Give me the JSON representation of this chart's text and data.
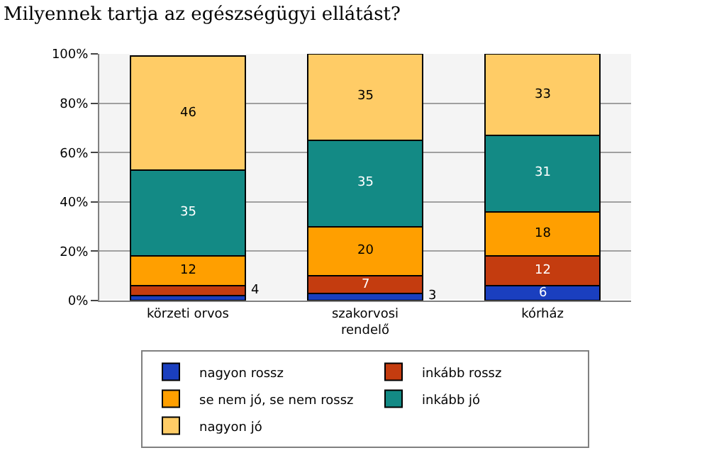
{
  "chart_data": {
    "type": "bar",
    "title": "Milyennek tartja az egészségügyi ellátást?",
    "categories": [
      "körzeti orvos",
      "szakorvosi\nrendelő",
      "kórház"
    ],
    "stacked": true,
    "ylim": [
      0,
      100
    ],
    "yticks": [
      {
        "value": 0,
        "label": "0%"
      },
      {
        "value": 20,
        "label": "20%"
      },
      {
        "value": 40,
        "label": "40%"
      },
      {
        "value": 60,
        "label": "60%"
      },
      {
        "value": 80,
        "label": "80%"
      },
      {
        "value": 100,
        "label": "100%"
      }
    ],
    "grid": "y",
    "legend": "bottom",
    "series": [
      {
        "name": "nagyon rossz",
        "color": "#1a3fbf",
        "values": [
          2,
          3,
          6
        ],
        "value_labels": [
          null,
          "3",
          "6"
        ]
      },
      {
        "name": "inkább rossz",
        "color": "#c43c0f",
        "values": [
          4,
          7,
          12
        ],
        "value_labels": [
          "4",
          "7",
          "12"
        ]
      },
      {
        "name": "se nem jó, se nem rossz",
        "color": "#ff9f00",
        "values": [
          12,
          20,
          18
        ],
        "value_labels": [
          "12",
          "20",
          "18"
        ]
      },
      {
        "name": "inkább jó",
        "color": "#138a85",
        "values": [
          35,
          35,
          31
        ],
        "value_labels": [
          "35",
          "35",
          "31"
        ]
      },
      {
        "name": "nagyon jó",
        "color": "#ffcc66",
        "values": [
          46,
          35,
          33
        ],
        "value_labels": [
          "46",
          "35",
          "33"
        ]
      }
    ]
  }
}
